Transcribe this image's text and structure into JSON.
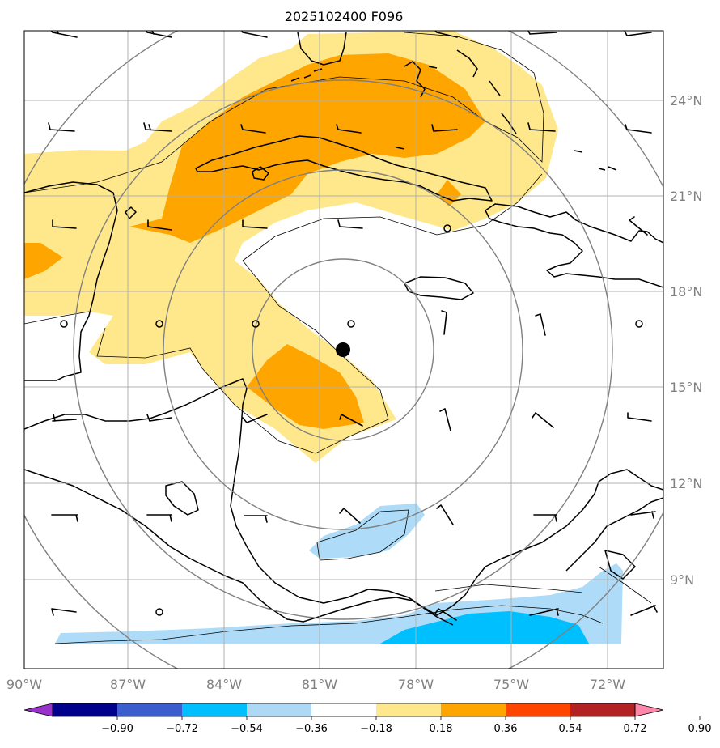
{
  "title": "2025102400 F096",
  "map": {
    "lon_range": [
      -90,
      -70.5
    ],
    "lat_range": [
      6.2,
      25.8
    ],
    "lon_ticks": [
      {
        "value": -90,
        "label": "90°W"
      },
      {
        "value": -87,
        "label": "87°W"
      },
      {
        "value": -84,
        "label": "84°W"
      },
      {
        "value": -81,
        "label": "81°W"
      },
      {
        "value": -78,
        "label": "78°W"
      },
      {
        "value": -75,
        "label": "75°W"
      },
      {
        "value": -72,
        "label": "72°W"
      }
    ],
    "lat_ticks": [
      {
        "value": 9,
        "label": "9°N"
      },
      {
        "value": 12,
        "label": "12°N"
      },
      {
        "value": 15,
        "label": "15°N"
      },
      {
        "value": 18,
        "label": "18°N"
      },
      {
        "value": 21,
        "label": "21°N"
      },
      {
        "value": 24,
        "label": "24°N"
      }
    ],
    "storm_center": {
      "lon": -80.3,
      "lat": 16.2
    },
    "range_rings_deg": [
      3,
      5.7,
      8.5,
      11.3
    ]
  },
  "colorbar": {
    "tick_labels": [
      "−0.90",
      "−0.72",
      "−0.54",
      "−0.36",
      "−0.18",
      "0.18",
      "0.36",
      "0.54",
      "0.72",
      "0.90"
    ],
    "colors": [
      "#9932cc",
      "#00008b",
      "#3a5fcd",
      "#00bfff",
      "#add8f6",
      "#ffffff",
      "#ffe88c",
      "#ffa500",
      "#ff4500",
      "#b22222",
      "#ff88aa"
    ]
  },
  "colors": {
    "light_yellow": "#ffe88c",
    "orange": "#ffa500",
    "light_blue": "#aedcf8",
    "deep_sky_blue": "#00bfff",
    "grid": "#b0b0b0",
    "ring": "#808080"
  }
}
